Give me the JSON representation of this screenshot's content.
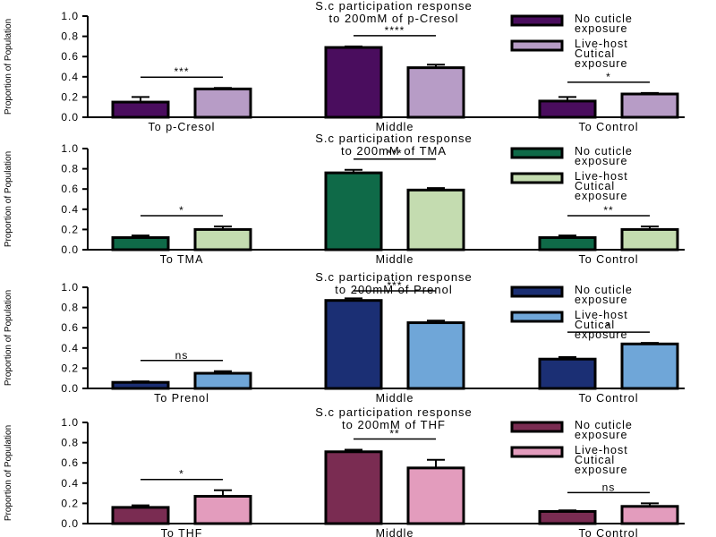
{
  "chart_data": [
    {
      "type": "bar",
      "title": "S.c participation response",
      "subtitle": "to 200mM of p-Cresol",
      "ylabel": "Proportion of Population",
      "ylim": [
        0,
        1.0
      ],
      "yticks": [
        "0.0",
        "0.2",
        "0.4",
        "0.6",
        "0.8",
        "1.0"
      ],
      "categories": [
        "To p-Cresol",
        "Middle",
        "To Control"
      ],
      "series": [
        {
          "name": "No cuticle exposure",
          "color": "#4a0d5e",
          "values": [
            0.15,
            0.69,
            0.16
          ],
          "errors": [
            0.05,
            0.01,
            0.04
          ]
        },
        {
          "name": "Live-host Cutical exposure",
          "color": "#b79cc6",
          "values": [
            0.28,
            0.49,
            0.23
          ],
          "errors": [
            0.01,
            0.03,
            0.01
          ]
        }
      ],
      "legend_lines": [
        [
          "No cuticle",
          "exposure"
        ],
        [
          "Live-host",
          "Cutical",
          "exposure"
        ]
      ],
      "significance": [
        "***",
        "****",
        "*"
      ]
    },
    {
      "type": "bar",
      "title": "S.c participation response",
      "subtitle": "to 200mM of TMA",
      "ylabel": "Proportion of Population",
      "ylim": [
        0,
        1.0
      ],
      "yticks": [
        "0.0",
        "0.2",
        "0.4",
        "0.6",
        "0.8",
        "1.0"
      ],
      "categories": [
        "To TMA",
        "Middle",
        "To Control"
      ],
      "series": [
        {
          "name": "No cuticle exposure",
          "color": "#0f6a48",
          "values": [
            0.12,
            0.76,
            0.12
          ],
          "errors": [
            0.02,
            0.03,
            0.02
          ]
        },
        {
          "name": "Live-host Cutical exposure",
          "color": "#c4dcb0",
          "values": [
            0.2,
            0.59,
            0.2
          ],
          "errors": [
            0.03,
            0.02,
            0.03
          ]
        }
      ],
      "legend_lines": [
        [
          "No cuticle",
          "exposure"
        ],
        [
          "Live-host",
          "Cutical",
          "exposure"
        ]
      ],
      "significance": [
        "*",
        "***",
        "**"
      ]
    },
    {
      "type": "bar",
      "title": "S.c participation response",
      "subtitle": "to 200mM of Prenol",
      "ylabel": "Proportion of Population",
      "ylim": [
        0,
        1.0
      ],
      "yticks": [
        "0.0",
        "0.2",
        "0.4",
        "0.6",
        "0.8",
        "1.0"
      ],
      "categories": [
        "To Prenol",
        "Middle",
        "To Control"
      ],
      "series": [
        {
          "name": "No cuticle exposure",
          "color": "#1b2f74",
          "values": [
            0.06,
            0.87,
            0.29
          ],
          "errors": [
            0.01,
            0.02,
            0.02
          ]
        },
        {
          "name": "Live-host Cutical exposure",
          "color": "#6fa6d8",
          "values": [
            0.15,
            0.65,
            0.44
          ],
          "errors": [
            0.02,
            0.02,
            0.01
          ]
        }
      ],
      "legend_lines": [
        [
          "No cuticle",
          "exposure"
        ],
        [
          "Live-host",
          "Cutical",
          "exposure"
        ]
      ],
      "significance": [
        "ns",
        "***",
        "*"
      ]
    },
    {
      "type": "bar",
      "title": "S.c participation response",
      "subtitle": "to 200mM of THF",
      "ylabel": "Proportion of Population",
      "ylim": [
        0,
        1.0
      ],
      "yticks": [
        "0.0",
        "0.2",
        "0.4",
        "0.6",
        "0.8",
        "1.0"
      ],
      "categories": [
        "To THF",
        "Middle",
        "To Control"
      ],
      "series": [
        {
          "name": "No cuticle exposure",
          "color": "#7a2c52",
          "values": [
            0.16,
            0.71,
            0.12
          ],
          "errors": [
            0.02,
            0.02,
            0.01
          ]
        },
        {
          "name": "Live-host Cutical exposure",
          "color": "#e39cbd",
          "values": [
            0.27,
            0.55,
            0.17
          ],
          "errors": [
            0.06,
            0.08,
            0.03
          ]
        }
      ],
      "legend_lines": [
        [
          "No cuticle",
          "exposure"
        ],
        [
          "Live-host",
          "Cutical",
          "exposure"
        ]
      ],
      "significance": [
        "*",
        "**",
        "ns"
      ]
    }
  ]
}
